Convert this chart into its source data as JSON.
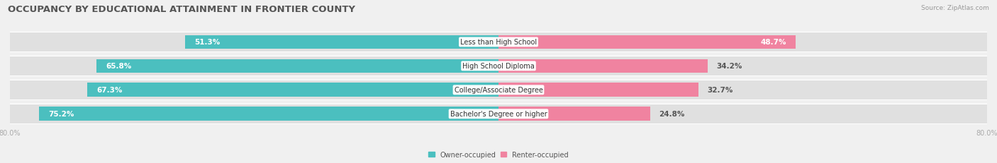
{
  "title": "OCCUPANCY BY EDUCATIONAL ATTAINMENT IN FRONTIER COUNTY",
  "source": "Source: ZipAtlas.com",
  "categories": [
    "Less than High School",
    "High School Diploma",
    "College/Associate Degree",
    "Bachelor's Degree or higher"
  ],
  "owner_values": [
    51.3,
    65.8,
    67.3,
    75.2
  ],
  "renter_values": [
    48.7,
    34.2,
    32.7,
    24.8
  ],
  "owner_color": "#4BBFBF",
  "renter_color": "#F083A0",
  "bg_color": "#f0f0f0",
  "bar_bg_color": "#e0e0e0",
  "title_fontsize": 9.5,
  "label_fontsize": 7.5,
  "tick_fontsize": 7,
  "bar_height": 0.58,
  "xlim_left": -80,
  "xlim_right": 80
}
